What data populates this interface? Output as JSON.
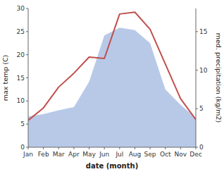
{
  "chart_data": {
    "type": "line",
    "xlabel": "date (month)",
    "ylabel": "max temp (C)",
    "y2label": "med. precipitation (kg/m2)",
    "categories": [
      "Jan",
      "Feb",
      "Mar",
      "Apr",
      "May",
      "Jun",
      "Jul",
      "Aug",
      "Sep",
      "Oct",
      "Nov",
      "Dec"
    ],
    "series": [
      {
        "type": "area",
        "axis": "y2",
        "color": "#b8c9e8",
        "values": [
          4.0,
          4.3,
          4.8,
          5.2,
          8.5,
          14.5,
          15.5,
          15.2,
          13.5,
          7.5,
          5.5,
          3.8
        ]
      },
      {
        "type": "line",
        "color": "#c0504d",
        "values": [
          5.8,
          8.5,
          13.0,
          16.0,
          19.5,
          19.2,
          28.8,
          29.2,
          25.5,
          18.0,
          10.5,
          6.0
        ]
      }
    ],
    "ylim": [
      0,
      30
    ],
    "yticks": [
      0,
      5,
      10,
      15,
      20,
      25,
      30
    ],
    "y2lim": [
      0,
      18
    ],
    "y2ticks": [
      0,
      5,
      10,
      15
    ],
    "grid": false
  }
}
